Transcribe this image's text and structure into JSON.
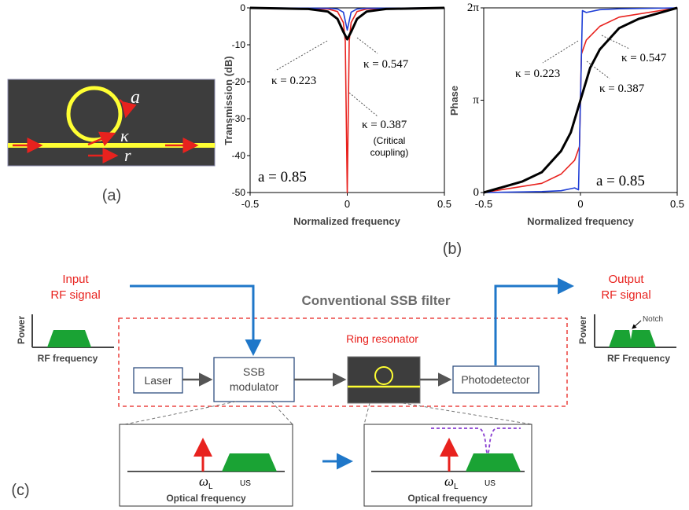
{
  "panel_a": {
    "label": "(a)",
    "symbol_a": "a",
    "symbol_kappa": "κ",
    "symbol_r": "r"
  },
  "panel_b": {
    "label": "(b)"
  },
  "panel_c": {
    "label": "(c)",
    "title": "Conventional SSB filter",
    "input_label_1": "Input",
    "input_label_2": "RF signal",
    "output_label_1": "Output",
    "output_label_2": "RF signal",
    "in_power_label": "Power",
    "in_freq_label": "RF frequency",
    "out_power_label": "Power",
    "out_freq_label": "RF Frequency",
    "notch_label": "Notch",
    "laser": "Laser",
    "ssb_1": "SSB",
    "ssb_2": "modulator",
    "ring_label": "Ring resonator",
    "photodetector": "Photodetector",
    "omega": "ω",
    "omega_sub": "L",
    "us_left": "US",
    "us_right": "US",
    "opt_freq_left": "Optical  frequency",
    "opt_freq_right": "Optical  frequency"
  },
  "chart_data": [
    {
      "type": "line",
      "xlabel": "Normalized frequency",
      "ylabel": "Transmission (dB)",
      "xlim": [
        -0.5,
        0.5
      ],
      "ylim": [
        -50,
        0
      ],
      "xticks": [
        "-0.5",
        "0",
        "0.5"
      ],
      "yticks": [
        "0",
        "-10",
        "-20",
        "-30",
        "-40",
        "-50"
      ],
      "annotation": "a = 0.85",
      "series": [
        {
          "name": "κ = 0.223",
          "color": "#1f3fd6",
          "x": [
            -0.5,
            -0.1,
            -0.05,
            -0.02,
            0,
            0.02,
            0.05,
            0.1,
            0.5
          ],
          "y": [
            0,
            -0.1,
            -0.3,
            -1.2,
            -6,
            -1.2,
            -0.3,
            -0.1,
            0
          ]
        },
        {
          "name": "κ = 0.387",
          "color": "#e8221e",
          "note": "(Critical coupling)",
          "x": [
            -0.5,
            -0.1,
            -0.05,
            -0.02,
            -0.01,
            0,
            0.01,
            0.02,
            0.05,
            0.1,
            0.5
          ],
          "y": [
            0,
            -0.3,
            -1,
            -4,
            -9,
            -50,
            -9,
            -4,
            -1,
            -0.3,
            0
          ]
        },
        {
          "name": "κ = 0.547",
          "color": "#000000",
          "x": [
            -0.5,
            -0.2,
            -0.1,
            -0.05,
            -0.02,
            0,
            0.02,
            0.05,
            0.1,
            0.2,
            0.5
          ],
          "y": [
            0,
            -0.3,
            -1,
            -3,
            -6.5,
            -8.5,
            -6.5,
            -3,
            -1,
            -0.3,
            0
          ]
        }
      ]
    },
    {
      "type": "line",
      "xlabel": "Normalized frequency",
      "ylabel": "Phase",
      "xlim": [
        -0.5,
        0.5
      ],
      "ylim": [
        0,
        2
      ],
      "xticks": [
        "-0.5",
        "0",
        "0.5"
      ],
      "yticks": [
        "0",
        "π",
        "2π"
      ],
      "annotation": "a = 0.85",
      "series": [
        {
          "name": "κ = 0.223",
          "color": "#1f3fd6",
          "x": [
            -0.5,
            -0.2,
            -0.1,
            -0.03,
            -0.01,
            0,
            0.01,
            0.03,
            0.1,
            0.2,
            0.5
          ],
          "y": [
            0,
            0.01,
            0.02,
            0.05,
            0.03,
            1,
            1.97,
            1.95,
            1.98,
            1.99,
            2
          ]
        },
        {
          "name": "κ = 0.387",
          "color": "#e8221e",
          "x": [
            -0.5,
            -0.2,
            -0.1,
            -0.03,
            -0.005,
            0,
            0.005,
            0.03,
            0.1,
            0.2,
            0.5
          ],
          "y": [
            0,
            0.1,
            0.2,
            0.35,
            0.5,
            1,
            1.5,
            1.65,
            1.8,
            1.9,
            2
          ]
        },
        {
          "name": "κ = 0.547",
          "color": "#000000",
          "x": [
            -0.5,
            -0.3,
            -0.2,
            -0.1,
            -0.05,
            0,
            0.05,
            0.1,
            0.2,
            0.3,
            0.5
          ],
          "y": [
            0,
            0.12,
            0.22,
            0.45,
            0.65,
            1,
            1.35,
            1.55,
            1.78,
            1.88,
            2
          ]
        }
      ]
    }
  ]
}
